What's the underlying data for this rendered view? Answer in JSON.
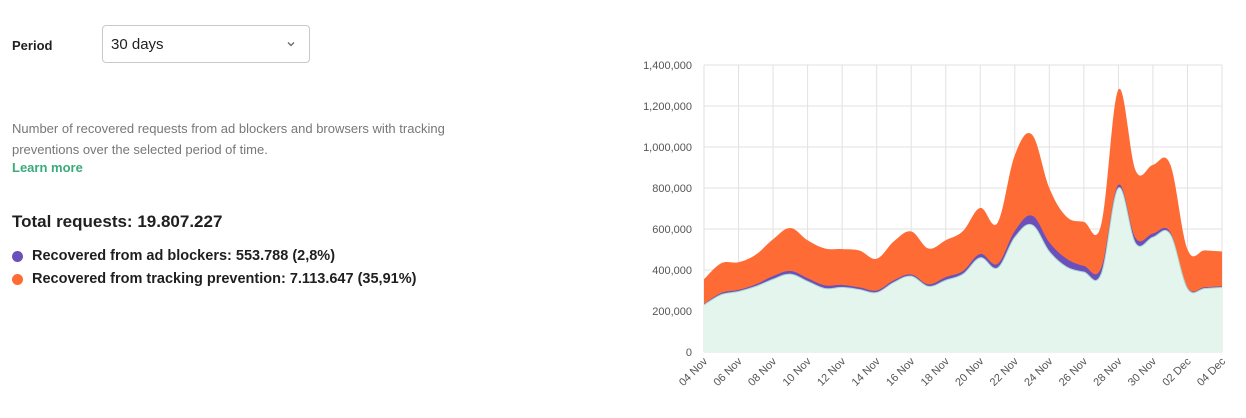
{
  "period": {
    "label": "Period",
    "value": "30 days"
  },
  "description": "Number of recovered requests from ad blockers and browsers with tracking preventions over the selected period of time.",
  "learn_more": "Learn more",
  "total": "Total requests: 19.807.227",
  "legend": [
    {
      "label": "Recovered from ad blockers: 553.788 (2,8%)",
      "color": "#6b4fbb"
    },
    {
      "label": "Recovered from tracking prevention: 7.113.647 (35,91%)",
      "color": "#ff6b35"
    }
  ],
  "colors": {
    "baseline_fill": "#e4f5ee",
    "baseline_line": "#a8d8cf",
    "grid": "#e2e2e2"
  },
  "chart_data": {
    "type": "area",
    "stacked": true,
    "x": [
      "04 Nov",
      "05 Nov",
      "06 Nov",
      "07 Nov",
      "08 Nov",
      "09 Nov",
      "10 Nov",
      "11 Nov",
      "12 Nov",
      "13 Nov",
      "14 Nov",
      "15 Nov",
      "16 Nov",
      "17 Nov",
      "18 Nov",
      "19 Nov",
      "20 Nov",
      "21 Nov",
      "22 Nov",
      "23 Nov",
      "24 Nov",
      "25 Nov",
      "26 Nov",
      "27 Nov",
      "28 Nov",
      "29 Nov",
      "30 Nov",
      "01 Dec",
      "02 Dec",
      "03 Dec",
      "04 Dec"
    ],
    "x_tick_labels": [
      "04 Nov",
      "06 Nov",
      "08 Nov",
      "10 Nov",
      "12 Nov",
      "14 Nov",
      "16 Nov",
      "18 Nov",
      "20 Nov",
      "22 Nov",
      "24 Nov",
      "26 Nov",
      "28 Nov",
      "30 Nov",
      "02 Dec",
      "04 Dec"
    ],
    "series": [
      {
        "values": [
          230000,
          280000,
          295000,
          320000,
          355000,
          380000,
          345000,
          310000,
          315000,
          305000,
          290000,
          340000,
          370000,
          320000,
          350000,
          380000,
          460000,
          410000,
          560000,
          620000,
          490000,
          415000,
          390000,
          380000,
          800000,
          530000,
          560000,
          575000,
          310000,
          310000,
          315000
        ]
      },
      {
        "values": [
          5000,
          8000,
          8000,
          10000,
          15000,
          15000,
          15000,
          15000,
          12000,
          10000,
          10000,
          10000,
          8000,
          10000,
          15000,
          15000,
          18000,
          20000,
          30000,
          45000,
          45000,
          40000,
          30000,
          30000,
          15000,
          25000,
          18000,
          10000,
          6000,
          6000,
          6000
        ]
      },
      {
        "values": [
          120000,
          145000,
          135000,
          145000,
          180000,
          210000,
          185000,
          180000,
          175000,
          180000,
          155000,
          190000,
          210000,
          175000,
          180000,
          195000,
          225000,
          200000,
          370000,
          395000,
          265000,
          205000,
          215000,
          210000,
          465000,
          330000,
          335000,
          330000,
          185000,
          180000,
          170000
        ]
      }
    ],
    "y_ticks": [
      0,
      200000,
      400000,
      600000,
      800000,
      1000000,
      1200000,
      1400000
    ],
    "y_tick_labels": [
      "0",
      "200,000",
      "400,000",
      "600,000",
      "800,000",
      "1,000,000",
      "1,200,000",
      "1,400,000"
    ],
    "ylim": [
      0,
      1400000
    ],
    "grid": true
  }
}
